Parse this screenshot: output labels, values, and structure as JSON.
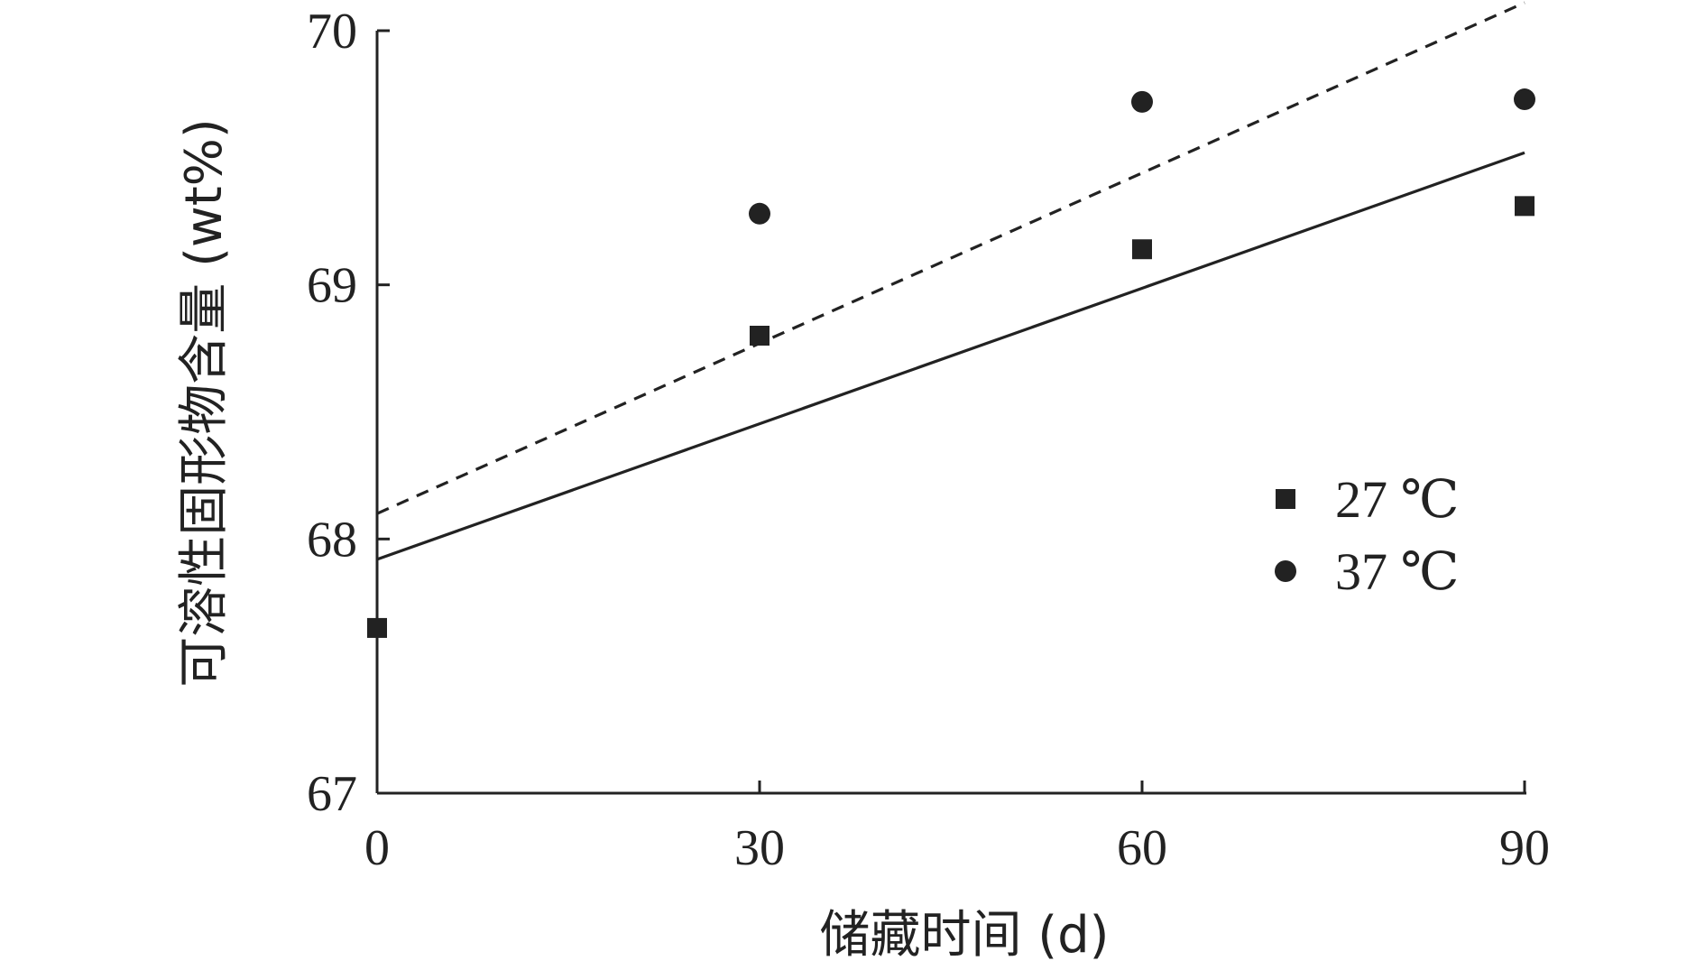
{
  "chart_data": {
    "type": "scatter",
    "x_axis": {
      "label": "储藏时间 (d)",
      "ticks": [
        0,
        30,
        60,
        90
      ],
      "range": [
        0,
        90
      ]
    },
    "y_axis": {
      "label": "可溶性固形物含量 (wt%)",
      "ticks": [
        67,
        68,
        69,
        70
      ],
      "range": [
        67,
        70
      ]
    },
    "grid": false,
    "legend_placement": "right-middle",
    "series": [
      {
        "name": "27 ℃",
        "marker": "square",
        "color": "#222222",
        "points": [
          {
            "x": 0,
            "y": 67.65
          },
          {
            "x": 30,
            "y": 68.8
          },
          {
            "x": 60,
            "y": 69.14
          },
          {
            "x": 90,
            "y": 69.31
          }
        ],
        "trendline": {
          "style": "solid",
          "x": [
            0,
            90
          ],
          "y": [
            67.92,
            69.52
          ]
        }
      },
      {
        "name": "37 ℃",
        "marker": "circle",
        "color": "#222222",
        "points": [
          {
            "x": 30,
            "y": 69.28
          },
          {
            "x": 60,
            "y": 69.72
          },
          {
            "x": 90,
            "y": 69.73
          }
        ],
        "trendline": {
          "style": "dashed",
          "x": [
            0,
            90
          ],
          "y": [
            68.1,
            70.11
          ]
        }
      }
    ]
  }
}
